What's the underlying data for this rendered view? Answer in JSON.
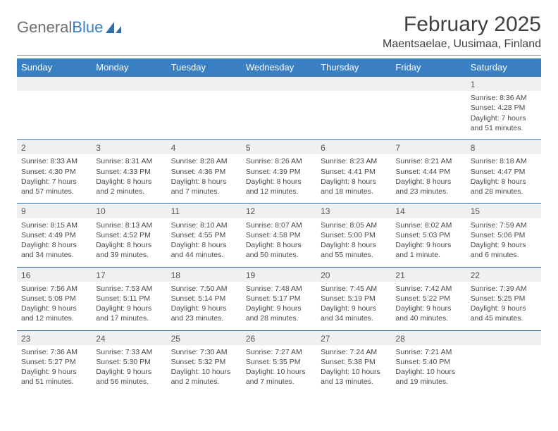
{
  "logo": {
    "text1": "General",
    "text2": "Blue"
  },
  "title": "February 2025",
  "location": "Maentsaelae, Uusimaa, Finland",
  "colors": {
    "header_bg": "#3a7fc2",
    "header_text": "#ffffff",
    "daynum_row_bg": "#eef0f1",
    "row_border": "#3a6fa8",
    "body_text": "#4a4a4a"
  },
  "weekdays": [
    "Sunday",
    "Monday",
    "Tuesday",
    "Wednesday",
    "Thursday",
    "Friday",
    "Saturday"
  ],
  "weeks": [
    [
      null,
      null,
      null,
      null,
      null,
      null,
      {
        "n": "1",
        "sr": "Sunrise: 8:36 AM",
        "ss": "Sunset: 4:28 PM",
        "d1": "Daylight: 7 hours",
        "d2": "and 51 minutes."
      }
    ],
    [
      {
        "n": "2",
        "sr": "Sunrise: 8:33 AM",
        "ss": "Sunset: 4:30 PM",
        "d1": "Daylight: 7 hours",
        "d2": "and 57 minutes."
      },
      {
        "n": "3",
        "sr": "Sunrise: 8:31 AM",
        "ss": "Sunset: 4:33 PM",
        "d1": "Daylight: 8 hours",
        "d2": "and 2 minutes."
      },
      {
        "n": "4",
        "sr": "Sunrise: 8:28 AM",
        "ss": "Sunset: 4:36 PM",
        "d1": "Daylight: 8 hours",
        "d2": "and 7 minutes."
      },
      {
        "n": "5",
        "sr": "Sunrise: 8:26 AM",
        "ss": "Sunset: 4:39 PM",
        "d1": "Daylight: 8 hours",
        "d2": "and 12 minutes."
      },
      {
        "n": "6",
        "sr": "Sunrise: 8:23 AM",
        "ss": "Sunset: 4:41 PM",
        "d1": "Daylight: 8 hours",
        "d2": "and 18 minutes."
      },
      {
        "n": "7",
        "sr": "Sunrise: 8:21 AM",
        "ss": "Sunset: 4:44 PM",
        "d1": "Daylight: 8 hours",
        "d2": "and 23 minutes."
      },
      {
        "n": "8",
        "sr": "Sunrise: 8:18 AM",
        "ss": "Sunset: 4:47 PM",
        "d1": "Daylight: 8 hours",
        "d2": "and 28 minutes."
      }
    ],
    [
      {
        "n": "9",
        "sr": "Sunrise: 8:15 AM",
        "ss": "Sunset: 4:49 PM",
        "d1": "Daylight: 8 hours",
        "d2": "and 34 minutes."
      },
      {
        "n": "10",
        "sr": "Sunrise: 8:13 AM",
        "ss": "Sunset: 4:52 PM",
        "d1": "Daylight: 8 hours",
        "d2": "and 39 minutes."
      },
      {
        "n": "11",
        "sr": "Sunrise: 8:10 AM",
        "ss": "Sunset: 4:55 PM",
        "d1": "Daylight: 8 hours",
        "d2": "and 44 minutes."
      },
      {
        "n": "12",
        "sr": "Sunrise: 8:07 AM",
        "ss": "Sunset: 4:58 PM",
        "d1": "Daylight: 8 hours",
        "d2": "and 50 minutes."
      },
      {
        "n": "13",
        "sr": "Sunrise: 8:05 AM",
        "ss": "Sunset: 5:00 PM",
        "d1": "Daylight: 8 hours",
        "d2": "and 55 minutes."
      },
      {
        "n": "14",
        "sr": "Sunrise: 8:02 AM",
        "ss": "Sunset: 5:03 PM",
        "d1": "Daylight: 9 hours",
        "d2": "and 1 minute."
      },
      {
        "n": "15",
        "sr": "Sunrise: 7:59 AM",
        "ss": "Sunset: 5:06 PM",
        "d1": "Daylight: 9 hours",
        "d2": "and 6 minutes."
      }
    ],
    [
      {
        "n": "16",
        "sr": "Sunrise: 7:56 AM",
        "ss": "Sunset: 5:08 PM",
        "d1": "Daylight: 9 hours",
        "d2": "and 12 minutes."
      },
      {
        "n": "17",
        "sr": "Sunrise: 7:53 AM",
        "ss": "Sunset: 5:11 PM",
        "d1": "Daylight: 9 hours",
        "d2": "and 17 minutes."
      },
      {
        "n": "18",
        "sr": "Sunrise: 7:50 AM",
        "ss": "Sunset: 5:14 PM",
        "d1": "Daylight: 9 hours",
        "d2": "and 23 minutes."
      },
      {
        "n": "19",
        "sr": "Sunrise: 7:48 AM",
        "ss": "Sunset: 5:17 PM",
        "d1": "Daylight: 9 hours",
        "d2": "and 28 minutes."
      },
      {
        "n": "20",
        "sr": "Sunrise: 7:45 AM",
        "ss": "Sunset: 5:19 PM",
        "d1": "Daylight: 9 hours",
        "d2": "and 34 minutes."
      },
      {
        "n": "21",
        "sr": "Sunrise: 7:42 AM",
        "ss": "Sunset: 5:22 PM",
        "d1": "Daylight: 9 hours",
        "d2": "and 40 minutes."
      },
      {
        "n": "22",
        "sr": "Sunrise: 7:39 AM",
        "ss": "Sunset: 5:25 PM",
        "d1": "Daylight: 9 hours",
        "d2": "and 45 minutes."
      }
    ],
    [
      {
        "n": "23",
        "sr": "Sunrise: 7:36 AM",
        "ss": "Sunset: 5:27 PM",
        "d1": "Daylight: 9 hours",
        "d2": "and 51 minutes."
      },
      {
        "n": "24",
        "sr": "Sunrise: 7:33 AM",
        "ss": "Sunset: 5:30 PM",
        "d1": "Daylight: 9 hours",
        "d2": "and 56 minutes."
      },
      {
        "n": "25",
        "sr": "Sunrise: 7:30 AM",
        "ss": "Sunset: 5:32 PM",
        "d1": "Daylight: 10 hours",
        "d2": "and 2 minutes."
      },
      {
        "n": "26",
        "sr": "Sunrise: 7:27 AM",
        "ss": "Sunset: 5:35 PM",
        "d1": "Daylight: 10 hours",
        "d2": "and 7 minutes."
      },
      {
        "n": "27",
        "sr": "Sunrise: 7:24 AM",
        "ss": "Sunset: 5:38 PM",
        "d1": "Daylight: 10 hours",
        "d2": "and 13 minutes."
      },
      {
        "n": "28",
        "sr": "Sunrise: 7:21 AM",
        "ss": "Sunset: 5:40 PM",
        "d1": "Daylight: 10 hours",
        "d2": "and 19 minutes."
      },
      null
    ]
  ]
}
